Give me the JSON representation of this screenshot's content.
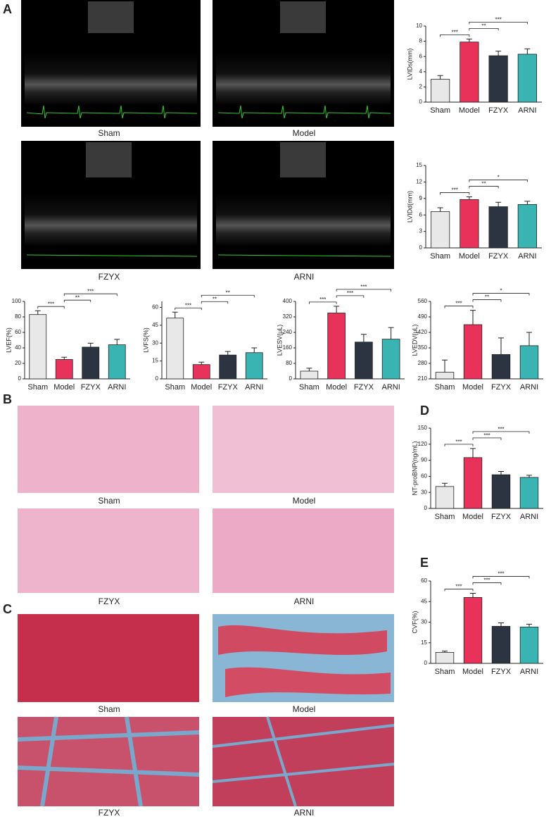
{
  "panel_labels": [
    "A",
    "B",
    "C",
    "D",
    "E"
  ],
  "echo_captions": [
    "Sham",
    "Model",
    "FZYX",
    "ARNI"
  ],
  "he_captions": [
    "Sham",
    "Model",
    "FZYX",
    "ARNI"
  ],
  "masson_captions": [
    "Sham",
    "Model",
    "FZYX",
    "ARNI"
  ],
  "chart_data": [
    {
      "type": "bar",
      "ylabel": "LVIDs(mm)",
      "categories": [
        "Sham",
        "Model",
        "FZYX",
        "ARNI"
      ],
      "values": [
        3.0,
        7.9,
        6.1,
        6.3
      ],
      "error": [
        0.5,
        0.4,
        0.6,
        0.7
      ],
      "colors": [
        "#e8e8e8",
        "#e8325a",
        "#2b3440",
        "#3ab3b3"
      ],
      "ylim": [
        0,
        10
      ],
      "yticks": [
        0,
        2,
        4,
        6,
        8,
        10
      ],
      "significance": [
        "***",
        null,
        "**",
        "***"
      ]
    },
    {
      "type": "bar",
      "ylabel": "LVIDd(mm)",
      "categories": [
        "Sham",
        "Model",
        "FZYX",
        "ARNI"
      ],
      "values": [
        6.6,
        8.8,
        7.5,
        7.9
      ],
      "error": [
        0.7,
        0.5,
        0.8,
        0.6
      ],
      "colors": [
        "#e8e8e8",
        "#e8325a",
        "#2b3440",
        "#3ab3b3"
      ],
      "ylim": [
        0,
        15
      ],
      "yticks": [
        0,
        3,
        6,
        9,
        12,
        15
      ],
      "significance": [
        "***",
        null,
        "**",
        "*"
      ]
    },
    {
      "type": "bar",
      "ylabel": "LVEF(%)",
      "categories": [
        "Sham",
        "Model",
        "FZYX",
        "ARNI"
      ],
      "values": [
        83,
        25,
        41,
        44
      ],
      "error": [
        5,
        3,
        5,
        7
      ],
      "colors": [
        "#e8e8e8",
        "#e8325a",
        "#2b3440",
        "#3ab3b3"
      ],
      "ylim": [
        0,
        100
      ],
      "yticks": [
        0,
        20,
        40,
        60,
        80,
        100
      ],
      "significance": [
        "***",
        null,
        "**",
        "***"
      ]
    },
    {
      "type": "bar",
      "ylabel": "LVFS(%)",
      "categories": [
        "Sham",
        "Model",
        "FZYX",
        "ARNI"
      ],
      "values": [
        51,
        12,
        20,
        22
      ],
      "error": [
        5,
        2,
        3,
        4
      ],
      "colors": [
        "#e8e8e8",
        "#e8325a",
        "#2b3440",
        "#3ab3b3"
      ],
      "ylim": [
        0,
        65
      ],
      "yticks": [
        0,
        15,
        30,
        45,
        60
      ],
      "significance": [
        "***",
        null,
        "**",
        "**"
      ]
    },
    {
      "type": "bar",
      "ylabel": "LVESV(μL)",
      "categories": [
        "Sham",
        "Model",
        "FZYX",
        "ARNI"
      ],
      "values": [
        40,
        340,
        190,
        205
      ],
      "error": [
        15,
        35,
        40,
        60
      ],
      "colors": [
        "#e8e8e8",
        "#e8325a",
        "#2b3440",
        "#3ab3b3"
      ],
      "ylim": [
        0,
        400
      ],
      "yticks": [
        0,
        80,
        160,
        240,
        320,
        400
      ],
      "significance": [
        "***",
        null,
        "***",
        "***"
      ]
    },
    {
      "type": "bar",
      "ylabel": "LVEDV(μL)",
      "categories": [
        "Sham",
        "Model",
        "FZYX",
        "ARNI"
      ],
      "values": [
        240,
        455,
        320,
        360
      ],
      "error": [
        55,
        65,
        75,
        60
      ],
      "colors": [
        "#e8e8e8",
        "#e8325a",
        "#2b3440",
        "#3ab3b3"
      ],
      "ylim": [
        210,
        560
      ],
      "yticks": [
        210,
        280,
        350,
        420,
        490,
        560
      ],
      "significance": [
        "***",
        null,
        "**",
        "*"
      ]
    },
    {
      "type": "bar",
      "ylabel": "NT-proBNP(ng/mL)",
      "categories": [
        "Sham",
        "Model",
        "FZYX",
        "ARNI"
      ],
      "values": [
        41,
        95,
        63,
        58
      ],
      "error": [
        6,
        17,
        6,
        4
      ],
      "colors": [
        "#e8e8e8",
        "#e8325a",
        "#2b3440",
        "#3ab3b3"
      ],
      "ylim": [
        0,
        150
      ],
      "yticks": [
        0,
        30,
        60,
        90,
        120,
        150
      ],
      "significance": [
        "***",
        null,
        "***",
        "***"
      ]
    },
    {
      "type": "bar",
      "ylabel": "CVF(%)",
      "categories": [
        "Sham",
        "Model",
        "FZYX",
        "ARNI"
      ],
      "values": [
        8,
        48,
        27,
        26.5
      ],
      "error": [
        1,
        3,
        2.5,
        2
      ],
      "colors": [
        "#e8e8e8",
        "#e8325a",
        "#2b3440",
        "#3ab3b3"
      ],
      "ylim": [
        0,
        60
      ],
      "yticks": [
        0,
        15,
        30,
        45,
        60
      ],
      "significance": [
        "***",
        null,
        "***",
        "***"
      ]
    }
  ]
}
